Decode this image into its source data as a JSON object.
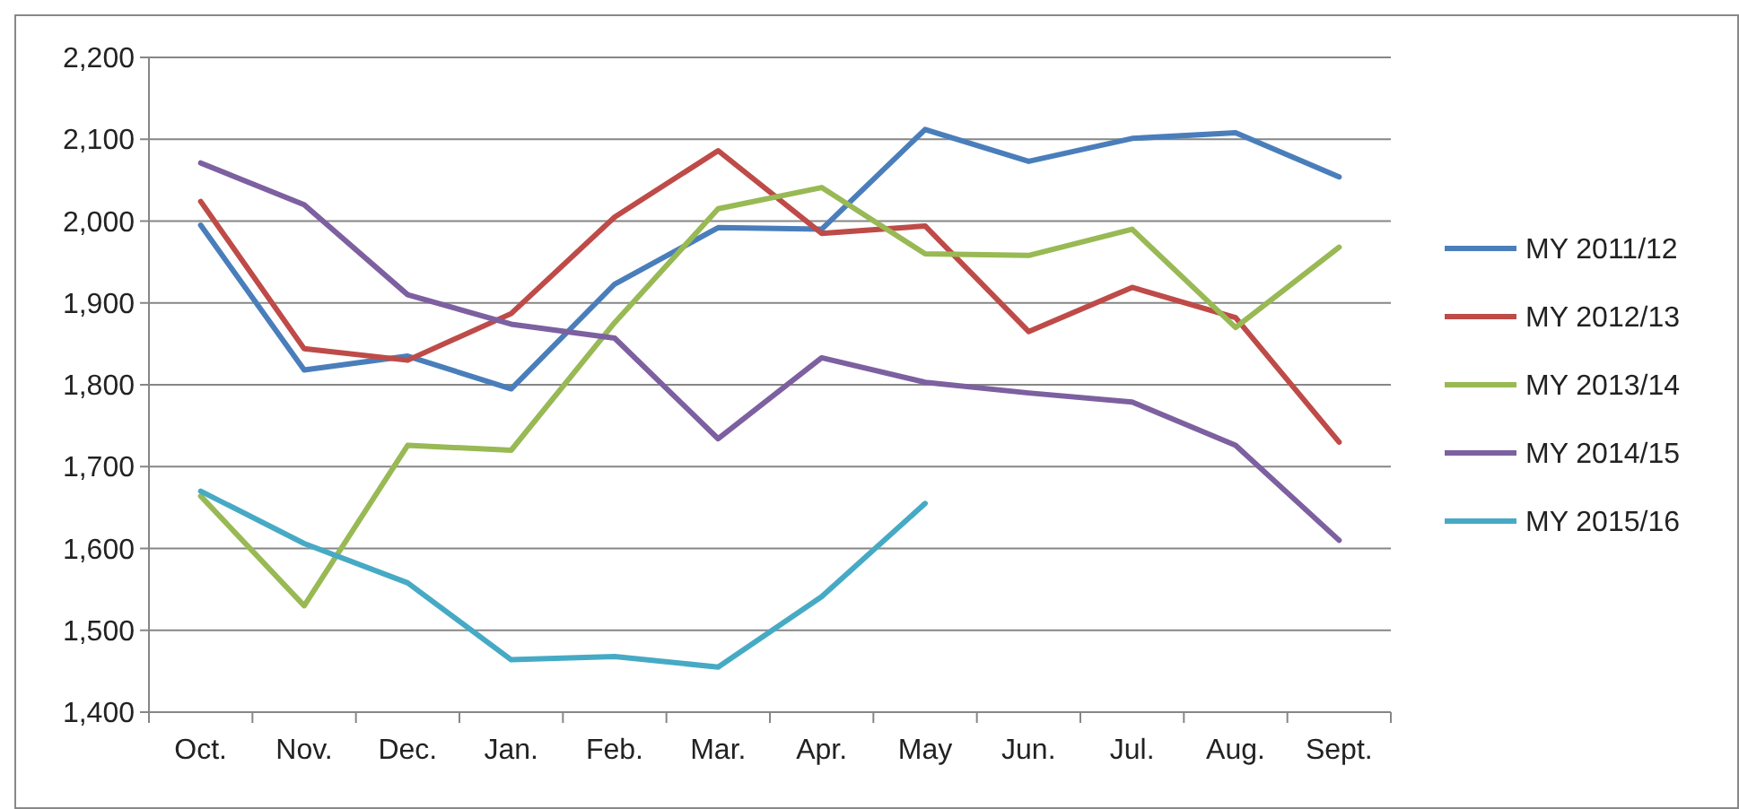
{
  "chart_data": {
    "type": "line",
    "categories": [
      "Oct.",
      "Nov.",
      "Dec.",
      "Jan.",
      "Feb.",
      "Mar.",
      "Apr.",
      "May",
      "Jun.",
      "Jul.",
      "Aug.",
      "Sept."
    ],
    "series": [
      {
        "name": "MY 2011/12",
        "color": "#4a7ebb",
        "values": [
          1995,
          1818,
          1835,
          1795,
          1923,
          1992,
          1990,
          2112,
          2073,
          2101,
          2108,
          2054
        ]
      },
      {
        "name": "MY 2012/13",
        "color": "#be4b48",
        "values": [
          2024,
          1844,
          1830,
          1887,
          2005,
          2086,
          1985,
          1994,
          1865,
          1919,
          1882,
          1730
        ]
      },
      {
        "name": "MY 2013/14",
        "color": "#98b954",
        "values": [
          1664,
          1530,
          1726,
          1720,
          1876,
          2015,
          2041,
          1960,
          1958,
          1990,
          1870,
          1968
        ]
      },
      {
        "name": "MY 2014/15",
        "color": "#7d60a0",
        "values": [
          2071,
          2020,
          1910,
          1874,
          1857,
          1734,
          1833,
          1803,
          1790,
          1779,
          1726,
          1610
        ]
      },
      {
        "name": "MY 2015/16",
        "color": "#46aac5",
        "values": [
          1670,
          1606,
          1558,
          1464,
          1468,
          1455,
          1541,
          1655,
          null,
          null,
          null,
          null
        ]
      }
    ],
    "ylim": [
      1400,
      2200
    ],
    "yticks": [
      {
        "value": 1400,
        "label": "1,400"
      },
      {
        "value": 1500,
        "label": "1,500"
      },
      {
        "value": 1600,
        "label": "1,600"
      },
      {
        "value": 1700,
        "label": "1,700"
      },
      {
        "value": 1800,
        "label": "1,800"
      },
      {
        "value": 1900,
        "label": "1,900"
      },
      {
        "value": 2000,
        "label": "2,000"
      },
      {
        "value": 2100,
        "label": "2,100"
      },
      {
        "value": 2200,
        "label": "2,200"
      }
    ],
    "grid": "y",
    "legend": "right",
    "marker": "none",
    "line_style": "solid"
  }
}
